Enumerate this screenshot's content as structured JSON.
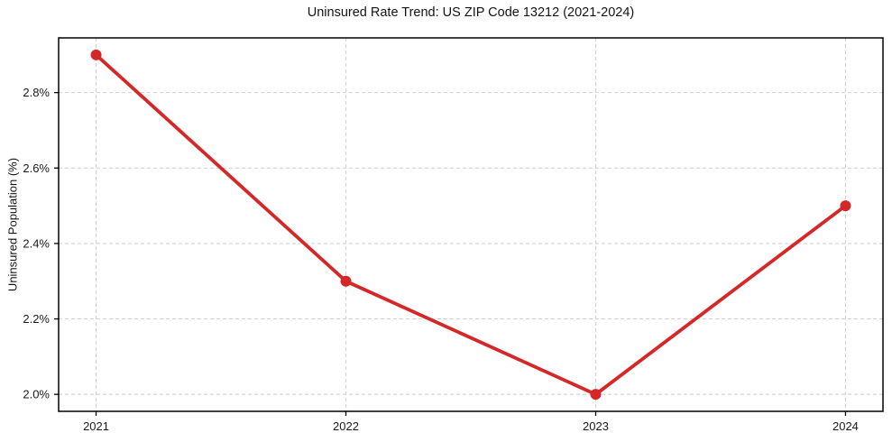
{
  "page": {
    "background_color": "#ffffff"
  },
  "chart_data": {
    "type": "line",
    "title": "Uninsured Rate Trend: US ZIP Code 13212 (2021-2024)",
    "xlabel": "",
    "ylabel": "Uninsured Population (%)",
    "x": [
      2021,
      2022,
      2023,
      2024
    ],
    "values": [
      2.9,
      2.3,
      2.0,
      2.5
    ],
    "xlim": [
      2020.85,
      2024.15
    ],
    "ylim": [
      1.955,
      2.945
    ],
    "xticks": {
      "values": [
        2021,
        2022,
        2023,
        2024
      ],
      "labels": [
        "2021",
        "2022",
        "2023",
        "2024"
      ]
    },
    "yticks": {
      "values": [
        2.0,
        2.2,
        2.4,
        2.6,
        2.8
      ],
      "labels": [
        "2.0%",
        "2.2%",
        "2.4%",
        "2.6%",
        "2.8%"
      ]
    },
    "grid": true,
    "grid_style": "dashed",
    "legend": false,
    "line_color": "#d62728",
    "line_width": 3.8,
    "marker": "circle",
    "marker_radius": 6,
    "grid_color": "#d2d2d2",
    "axis_color": "#000000",
    "text_color": "#1a1a1a"
  }
}
